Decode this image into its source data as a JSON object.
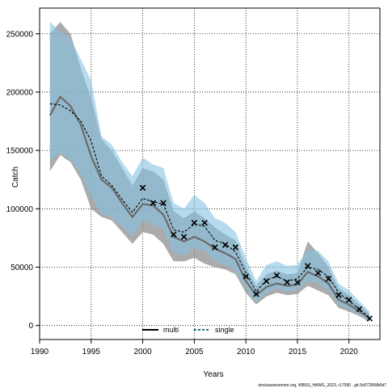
{
  "chart_data": {
    "type": "line",
    "xlabel": "Years",
    "ylabel": "Catch",
    "xlim": [
      1990,
      2023
    ],
    "ylim": [
      -12000,
      272000
    ],
    "xticks": [
      1990,
      1995,
      2000,
      2005,
      2010,
      2015,
      2020
    ],
    "yticks": [
      0,
      50000,
      100000,
      150000,
      200000,
      250000
    ],
    "grid": true,
    "legend_position": "bottom-center",
    "colors": {
      "multi_band": "#8f8f8f",
      "single_band": "#87c3e3",
      "multi_line": "#000000",
      "single_line": "#000000"
    },
    "x": [
      1991,
      1992,
      1993,
      1994,
      1995,
      1996,
      1997,
      1998,
      1999,
      2000,
      2001,
      2002,
      2003,
      2004,
      2005,
      2006,
      2007,
      2008,
      2009,
      2010,
      2011,
      2012,
      2013,
      2014,
      2015,
      2016,
      2017,
      2018,
      2019,
      2020,
      2021,
      2022
    ],
    "series": [
      {
        "name": "multi",
        "style": "solid",
        "values": [
          180000,
          196000,
          188000,
          172000,
          145000,
          125000,
          118000,
          105000,
          93000,
          104000,
          103000,
          95000,
          76000,
          72000,
          76000,
          72000,
          66000,
          62000,
          57000,
          38000,
          26000,
          33000,
          36000,
          34000,
          35000,
          46000,
          42000,
          36000,
          22000,
          18000,
          12000,
          6000
        ],
        "lower": [
          132000,
          146000,
          140000,
          125000,
          100000,
          93000,
          90000,
          80000,
          70000,
          80000,
          78000,
          70000,
          55000,
          55000,
          58000,
          53000,
          50000,
          48000,
          44000,
          28000,
          18000,
          25000,
          28000,
          26000,
          27000,
          34000,
          30000,
          26000,
          15000,
          12000,
          8000,
          3000
        ],
        "upper": [
          250000,
          260000,
          250000,
          220000,
          195000,
          160000,
          150000,
          135000,
          120000,
          135000,
          132000,
          125000,
          98000,
          92000,
          98000,
          92000,
          84000,
          78000,
          73000,
          50000,
          34000,
          44000,
          47000,
          44000,
          45000,
          72000,
          62000,
          50000,
          32000,
          26000,
          18000,
          10000
        ]
      },
      {
        "name": "single",
        "style": "dashed",
        "values": [
          190000,
          189000,
          184000,
          175000,
          158000,
          128000,
          120000,
          108000,
          97000,
          109000,
          106000,
          104000,
          82000,
          80000,
          87000,
          85000,
          73000,
          70000,
          63000,
          45000,
          29000,
          39000,
          42000,
          38000,
          40000,
          50000,
          48000,
          42000,
          28000,
          21000,
          14000,
          7000
        ],
        "lower": [
          142000,
          148000,
          142000,
          130000,
          110000,
          96000,
          92000,
          85000,
          76000,
          90000,
          86000,
          82000,
          62000,
          60000,
          66000,
          64000,
          55000,
          52000,
          47000,
          32000,
          20000,
          28000,
          32000,
          29000,
          30000,
          38000,
          36000,
          30000,
          18000,
          14000,
          9000,
          4000
        ],
        "upper": [
          260000,
          252000,
          246000,
          228000,
          210000,
          162000,
          155000,
          140000,
          128000,
          144000,
          138000,
          135000,
          105000,
          100000,
          112000,
          105000,
          92000,
          88000,
          80000,
          58000,
          38000,
          52000,
          55000,
          51000,
          52000,
          65000,
          64000,
          55000,
          36000,
          30000,
          21000,
          12000
        ]
      },
      {
        "name": "observed",
        "style": "marker-x",
        "values": [
          null,
          null,
          null,
          null,
          null,
          null,
          null,
          null,
          null,
          118000,
          105000,
          105000,
          78000,
          76000,
          88000,
          88000,
          67000,
          69000,
          67000,
          42000,
          27000,
          38000,
          43000,
          37000,
          37000,
          51000,
          45000,
          40000,
          26000,
          22000,
          14000,
          6000
        ]
      }
    ]
  },
  "legend": {
    "items": [
      {
        "label": "multi"
      },
      {
        "label": "single"
      }
    ]
  },
  "source_text": "stockassessment.org, WBSS_HAWG_2023, r17090 , git:3c872568b0d7"
}
